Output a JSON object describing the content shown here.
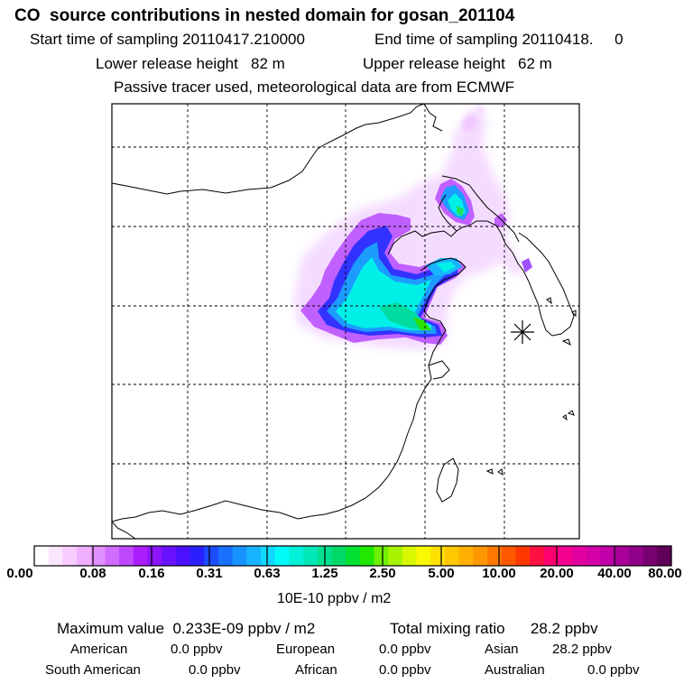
{
  "title": "CO  source contributions in nested domain for gosan_201104",
  "sampling": {
    "start": "Start time of sampling 20110417.210000",
    "end": "End time of sampling 20110418.     0"
  },
  "release": {
    "lower": "Lower release height   82 m",
    "upper": "Upper release height   62 m"
  },
  "info": "Passive tracer used, meteorological data are from ECMWF",
  "colorbar": {
    "labels": [
      "0.00",
      "0.08",
      "0.16",
      "0.31",
      "0.63",
      "1.25",
      "2.50",
      "5.00",
      "10.00",
      "20.00",
      "40.00",
      "80.00"
    ],
    "units": "10E-10 ppbv / m2",
    "colors": [
      "#ffffff",
      "#fbe6ff",
      "#f7ccff",
      "#f0b0ff",
      "#e190ff",
      "#d06cff",
      "#bf48ff",
      "#ad1eff",
      "#8c14ff",
      "#6a12ff",
      "#4a10ff",
      "#2a20ff",
      "#1c4cff",
      "#1870ff",
      "#1894ff",
      "#18b4ff",
      "#10d8ff",
      "#00fcf8",
      "#00f0d8",
      "#00e8b8",
      "#00e090",
      "#00d868",
      "#00e030",
      "#20e800",
      "#70f000",
      "#a8f400",
      "#d8f800",
      "#f8f800",
      "#ffe000",
      "#ffc800",
      "#ffb000",
      "#ff9800",
      "#ff7800",
      "#ff5800",
      "#ff3800",
      "#ff1040",
      "#ff0070",
      "#f40090",
      "#e400a0",
      "#d400a8",
      "#c000a8",
      "#a80098",
      "#900088",
      "#780070",
      "#600058"
    ]
  },
  "summary": {
    "max_value": "Maximum value  0.233E-09 ppbv / m2",
    "total": "Total mixing ratio      28.2 ppbv"
  },
  "regions": [
    {
      "name": "American",
      "value": "0.0 ppbv"
    },
    {
      "name": "European",
      "value": "0.0 ppbv"
    },
    {
      "name": "Asian",
      "value": "28.2 ppbv"
    },
    {
      "name": "South American",
      "value": "0.0 ppbv"
    },
    {
      "name": "African",
      "value": "0.0 ppbv"
    },
    {
      "name": "Australian",
      "value": "0.0 ppbv"
    }
  ]
}
